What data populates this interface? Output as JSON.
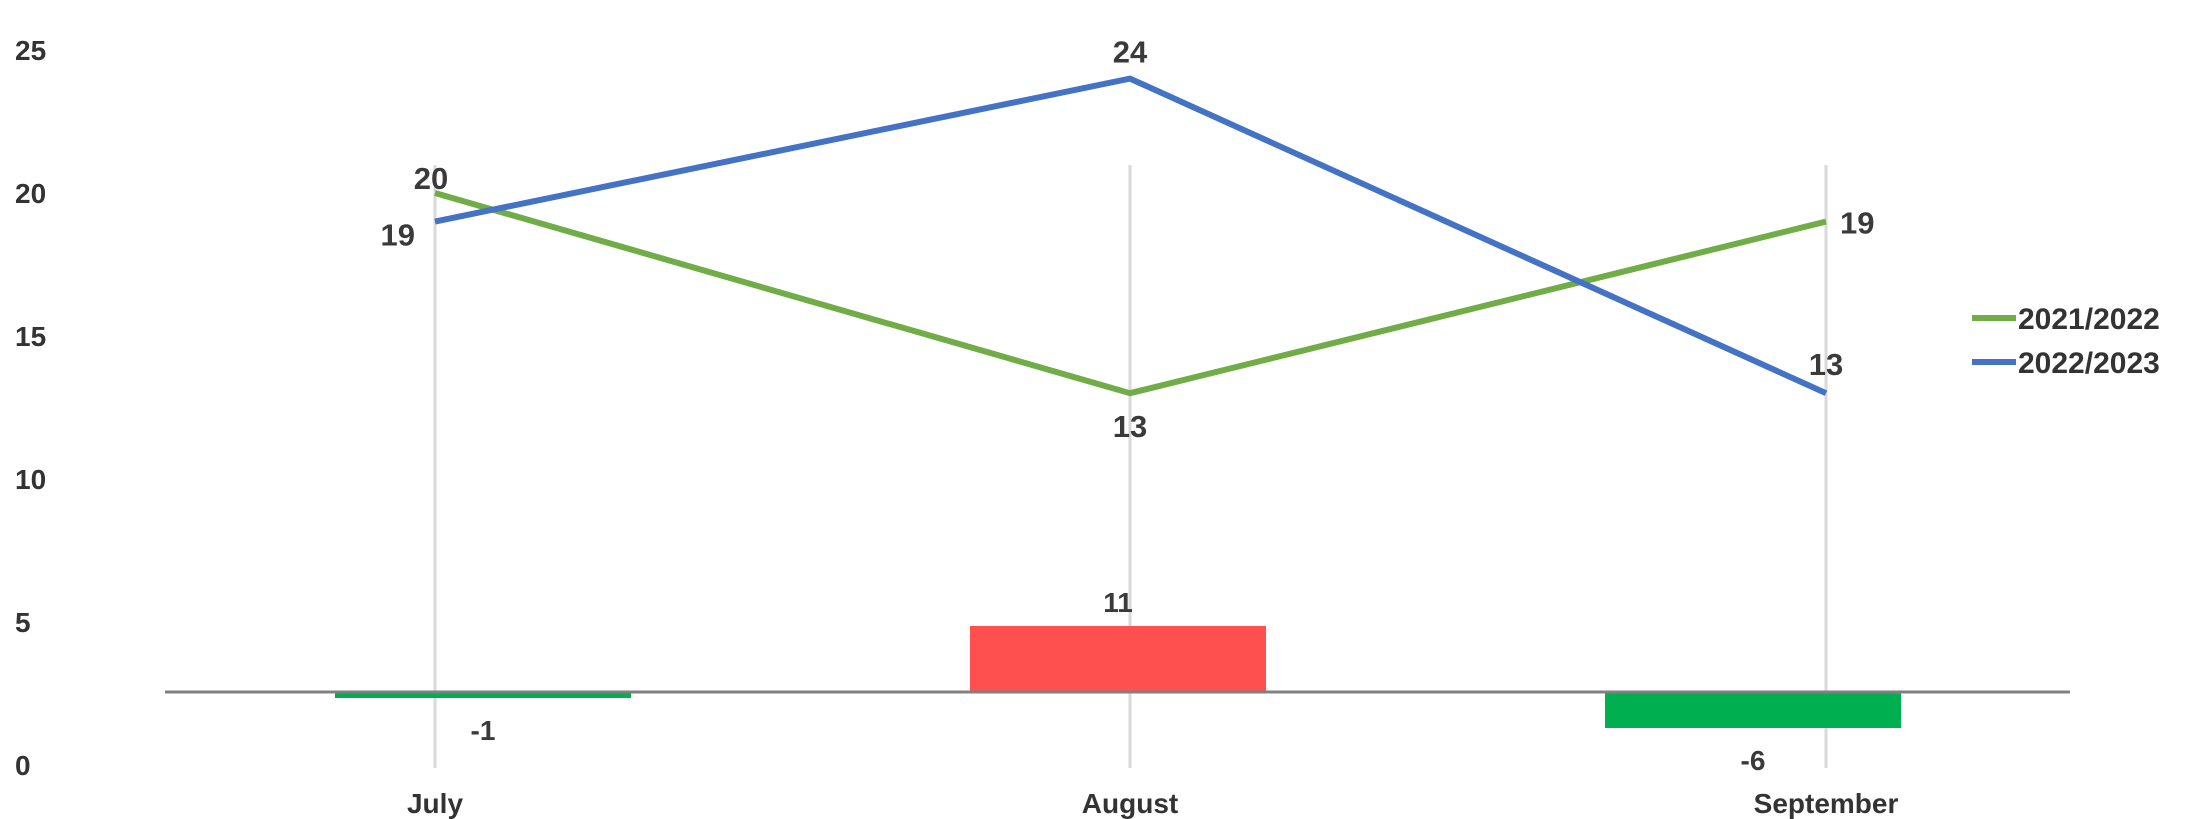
{
  "chart_data": {
    "type": "line",
    "categories": [
      "July",
      "August",
      "September"
    ],
    "ylim": [
      0,
      25
    ],
    "yticks": [
      "0",
      "5",
      "10",
      "15",
      "20",
      "25"
    ],
    "grid": "vertical",
    "legend_position": "right",
    "series": [
      {
        "name": "2021/2022",
        "values": [
          20,
          13,
          19
        ],
        "color": "#70ad47"
      },
      {
        "name": "2022/2023",
        "values": [
          19,
          24,
          13
        ],
        "color": "#4472c4"
      }
    ],
    "difference_bars": {
      "values": [
        -1,
        11,
        -6
      ],
      "labels": [
        "-1",
        "11",
        "-6"
      ],
      "positive_color": "#ff5050",
      "negative_color": "#00b050"
    },
    "value_labels": {
      "series_0": [
        "20",
        "13",
        "19"
      ],
      "series_1": [
        "19",
        "24",
        "13"
      ]
    }
  }
}
